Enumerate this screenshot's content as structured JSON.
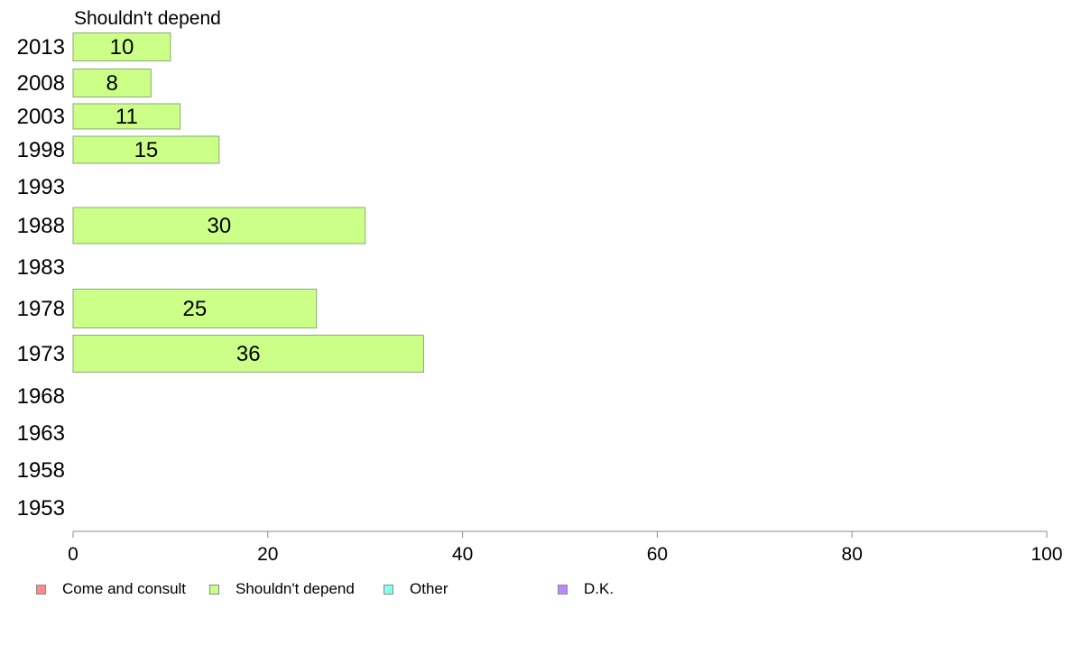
{
  "chart_data": {
    "type": "bar",
    "orientation": "horizontal",
    "title": "Shouldn't depend",
    "categories": [
      "2013",
      "2008",
      "2003",
      "1998",
      "1993",
      "1988",
      "1983",
      "1978",
      "1973",
      "1968",
      "1963",
      "1958",
      "1953"
    ],
    "series": [
      {
        "name": "Shouldn't depend",
        "color": "#ccff88",
        "values": [
          10,
          8,
          11,
          15,
          null,
          30,
          null,
          25,
          36,
          null,
          null,
          null,
          null
        ],
        "labels": [
          "10",
          "8",
          "11",
          "15",
          "",
          "30",
          "",
          "25",
          "36",
          "",
          "",
          "",
          ""
        ]
      }
    ],
    "xlim": [
      0,
      100
    ],
    "xticks": [
      "0",
      "20",
      "40",
      "60",
      "80",
      "100"
    ],
    "grid": false,
    "legend_position": "bottom",
    "legend": [
      {
        "label": "Come and consult",
        "color": "#ff8a8a"
      },
      {
        "label": "Shouldn't depend",
        "color": "#ccff88"
      },
      {
        "label": "Other",
        "color": "#88ffee"
      },
      {
        "label": "D.K.",
        "color": "#bb88ff"
      }
    ]
  }
}
